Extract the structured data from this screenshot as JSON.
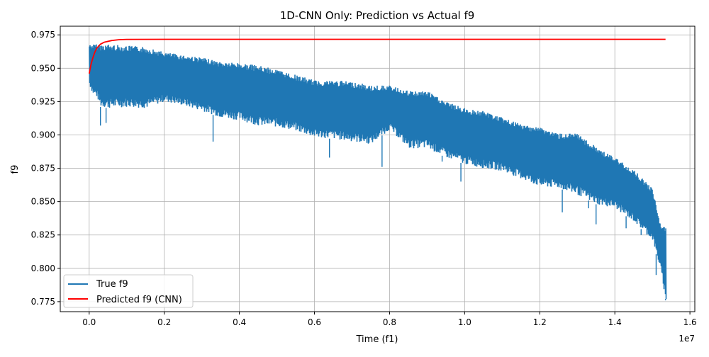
{
  "chart_data": {
    "type": "line",
    "title": "1D-CNN Only: Prediction vs Actual f9",
    "xlabel": "Time (f1)",
    "ylabel": "f9",
    "x_offset_label": "1e7",
    "xlim": [
      -0.077,
      1.613
    ],
    "ylim": [
      0.7675,
      0.9815
    ],
    "x_ticks": [
      0.0,
      0.2,
      0.4,
      0.6,
      0.8,
      1.0,
      1.2,
      1.4,
      1.6
    ],
    "x_tick_labels": [
      "0.0",
      "0.2",
      "0.4",
      "0.6",
      "0.8",
      "1.0",
      "1.2",
      "1.4",
      "1.6"
    ],
    "y_ticks": [
      0.775,
      0.8,
      0.825,
      0.85,
      0.875,
      0.9,
      0.925,
      0.95,
      0.975
    ],
    "y_tick_labels": [
      "0.775",
      "0.800",
      "0.825",
      "0.850",
      "0.875",
      "0.900",
      "0.925",
      "0.950",
      "0.975"
    ],
    "grid": true,
    "legend_position": "lower-left",
    "series": [
      {
        "name": "True f9",
        "color": "#1f77b4",
        "x": [
          0.0,
          0.01,
          0.02,
          0.03,
          0.05,
          0.1,
          0.15,
          0.2,
          0.25,
          0.3,
          0.35,
          0.4,
          0.45,
          0.5,
          0.55,
          0.6,
          0.65,
          0.7,
          0.75,
          0.8,
          0.85,
          0.9,
          0.95,
          1.0,
          1.05,
          1.1,
          1.15,
          1.2,
          1.25,
          1.3,
          1.35,
          1.4,
          1.45,
          1.5,
          1.52,
          1.535
        ],
        "upper": [
          0.968,
          0.968,
          0.968,
          0.968,
          0.968,
          0.967,
          0.966,
          0.962,
          0.96,
          0.958,
          0.955,
          0.954,
          0.952,
          0.949,
          0.945,
          0.941,
          0.941,
          0.94,
          0.937,
          0.937,
          0.933,
          0.933,
          0.925,
          0.92,
          0.918,
          0.913,
          0.908,
          0.906,
          0.901,
          0.901,
          0.891,
          0.883,
          0.874,
          0.86,
          0.835,
          0.83
        ],
        "lower": [
          0.937,
          0.93,
          0.928,
          0.921,
          0.92,
          0.921,
          0.92,
          0.925,
          0.922,
          0.918,
          0.913,
          0.911,
          0.907,
          0.906,
          0.903,
          0.898,
          0.897,
          0.895,
          0.893,
          0.904,
          0.89,
          0.89,
          0.883,
          0.878,
          0.875,
          0.873,
          0.867,
          0.861,
          0.86,
          0.855,
          0.848,
          0.845,
          0.835,
          0.821,
          0.8,
          0.776
        ],
        "outliers": [
          [
            0.03,
            0.907
          ],
          [
            0.045,
            0.909
          ],
          [
            0.33,
            0.895
          ],
          [
            0.64,
            0.883
          ],
          [
            0.78,
            0.876
          ],
          [
            0.94,
            0.88
          ],
          [
            0.99,
            0.865
          ],
          [
            1.26,
            0.842
          ],
          [
            1.33,
            0.845
          ],
          [
            1.35,
            0.833
          ],
          [
            1.43,
            0.83
          ],
          [
            1.47,
            0.825
          ],
          [
            1.51,
            0.795
          ],
          [
            1.535,
            0.777
          ]
        ]
      },
      {
        "name": "Predicted f9 (CNN)",
        "color": "#ff0000",
        "x": [
          0.0,
          0.005,
          0.01,
          0.015,
          0.02,
          0.03,
          0.04,
          0.06,
          0.08,
          0.1,
          0.2,
          0.5,
          1.0,
          1.535
        ],
        "y": [
          0.946,
          0.953,
          0.958,
          0.962,
          0.965,
          0.968,
          0.9695,
          0.9708,
          0.9714,
          0.9716,
          0.9717,
          0.9717,
          0.9717,
          0.9717
        ]
      }
    ]
  }
}
